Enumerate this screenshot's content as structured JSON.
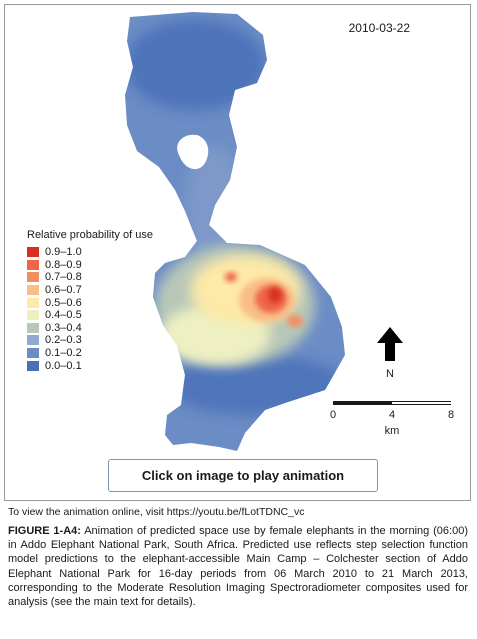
{
  "date_label": "2010-03-22",
  "legend": {
    "title": "Relative probability of use",
    "classes": [
      {
        "label": "0.9–1.0",
        "color": "#d7301f"
      },
      {
        "label": "0.8–0.9",
        "color": "#ef6548"
      },
      {
        "label": "0.7–0.8",
        "color": "#f48d61"
      },
      {
        "label": "0.6–0.7",
        "color": "#f9bd86"
      },
      {
        "label": "0.5–0.6",
        "color": "#fde9a8"
      },
      {
        "label": "0.4–0.5",
        "color": "#eef0c2"
      },
      {
        "label": "0.3–0.4",
        "color": "#b8c7b7"
      },
      {
        "label": "0.2–0.3",
        "color": "#92a9cf"
      },
      {
        "label": "0.1–0.2",
        "color": "#6b8cc5"
      },
      {
        "label": "0.0–0.1",
        "color": "#4a70b8"
      }
    ]
  },
  "north_label": "N",
  "scale_bar": {
    "ticks": [
      "0",
      "4",
      "8"
    ],
    "unit": "km"
  },
  "play_button": "Click on image to play animation",
  "online_note": "To view the animation online, visit https://youtu.be/fLotTDNC_vc",
  "caption": {
    "label": "FIGURE 1-A4:",
    "text": " Animation of predicted space use by female elephants in the morning (06:00) in Addo Elephant National Park, South Africa. Predicted use reflects step selection function model predictions to the elephant-accessible Main Camp – Colchester section of Addo Elephant National Park for 16-day periods from 06 March 2010 to 21 March 2013, corresponding to the Moderate Resolution Imaging Spectroradiometer composites used for analysis (see the main text for details)."
  }
}
